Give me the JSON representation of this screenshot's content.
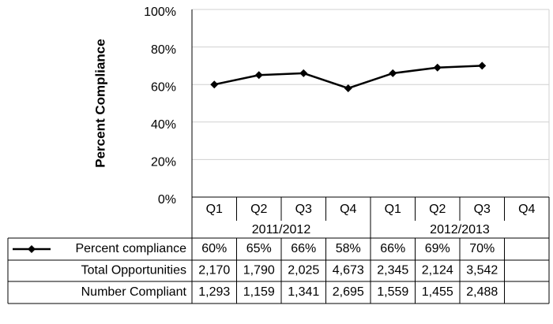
{
  "chart_data": {
    "type": "line",
    "y_axis_label": "Percent Compliance",
    "categories": [
      "Q1",
      "Q2",
      "Q3",
      "Q4",
      "Q1",
      "Q2",
      "Q3",
      "Q4"
    ],
    "groups": [
      "2011/2012",
      "2012/2013"
    ],
    "ylim": [
      0,
      100
    ],
    "yticks": [
      {
        "value": 0,
        "label": "0%"
      },
      {
        "value": 20,
        "label": "20%"
      },
      {
        "value": 40,
        "label": "40%"
      },
      {
        "value": 60,
        "label": "60%"
      },
      {
        "value": 80,
        "label": "80%"
      },
      {
        "value": 100,
        "label": "100%"
      }
    ],
    "grid": true,
    "series": [
      {
        "name": "Percent compliance",
        "color": "#000000",
        "values": [
          60,
          65,
          66,
          58,
          66,
          69,
          70,
          null
        ],
        "value_labels": [
          "60%",
          "65%",
          "66%",
          "58%",
          "66%",
          "69%",
          "70%",
          null
        ]
      }
    ],
    "table_rows": [
      {
        "name": "Total Opportunities",
        "cells": [
          "2,170",
          "1,790",
          "2,025",
          "4,673",
          "2,345",
          "2,124",
          "3,542"
        ]
      },
      {
        "name": "Number Compliant",
        "cells": [
          "1,293",
          "1,159",
          "1,341",
          "2,695",
          "1,559",
          "1,455",
          "2,488"
        ]
      }
    ]
  }
}
